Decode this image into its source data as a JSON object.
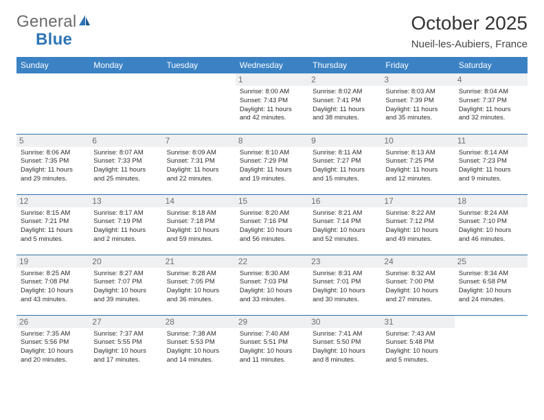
{
  "brand": {
    "part1": "General",
    "part2": "Blue"
  },
  "title": "October 2025",
  "location": "Nueil-les-Aubiers, France",
  "colors": {
    "header_bg": "#3b82c4",
    "header_text": "#ffffff",
    "daynum_bg": "#eef0f2",
    "rule": "#2e6da4",
    "brand_blue": "#2e74b5"
  },
  "weekdays": [
    "Sunday",
    "Monday",
    "Tuesday",
    "Wednesday",
    "Thursday",
    "Friday",
    "Saturday"
  ],
  "weeks": [
    [
      {
        "n": "",
        "sr": "",
        "ss": "",
        "dl": ""
      },
      {
        "n": "",
        "sr": "",
        "ss": "",
        "dl": ""
      },
      {
        "n": "",
        "sr": "",
        "ss": "",
        "dl": ""
      },
      {
        "n": "1",
        "sr": "Sunrise: 8:00 AM",
        "ss": "Sunset: 7:43 PM",
        "dl": "Daylight: 11 hours and 42 minutes."
      },
      {
        "n": "2",
        "sr": "Sunrise: 8:02 AM",
        "ss": "Sunset: 7:41 PM",
        "dl": "Daylight: 11 hours and 38 minutes."
      },
      {
        "n": "3",
        "sr": "Sunrise: 8:03 AM",
        "ss": "Sunset: 7:39 PM",
        "dl": "Daylight: 11 hours and 35 minutes."
      },
      {
        "n": "4",
        "sr": "Sunrise: 8:04 AM",
        "ss": "Sunset: 7:37 PM",
        "dl": "Daylight: 11 hours and 32 minutes."
      }
    ],
    [
      {
        "n": "5",
        "sr": "Sunrise: 8:06 AM",
        "ss": "Sunset: 7:35 PM",
        "dl": "Daylight: 11 hours and 29 minutes."
      },
      {
        "n": "6",
        "sr": "Sunrise: 8:07 AM",
        "ss": "Sunset: 7:33 PM",
        "dl": "Daylight: 11 hours and 25 minutes."
      },
      {
        "n": "7",
        "sr": "Sunrise: 8:09 AM",
        "ss": "Sunset: 7:31 PM",
        "dl": "Daylight: 11 hours and 22 minutes."
      },
      {
        "n": "8",
        "sr": "Sunrise: 8:10 AM",
        "ss": "Sunset: 7:29 PM",
        "dl": "Daylight: 11 hours and 19 minutes."
      },
      {
        "n": "9",
        "sr": "Sunrise: 8:11 AM",
        "ss": "Sunset: 7:27 PM",
        "dl": "Daylight: 11 hours and 15 minutes."
      },
      {
        "n": "10",
        "sr": "Sunrise: 8:13 AM",
        "ss": "Sunset: 7:25 PM",
        "dl": "Daylight: 11 hours and 12 minutes."
      },
      {
        "n": "11",
        "sr": "Sunrise: 8:14 AM",
        "ss": "Sunset: 7:23 PM",
        "dl": "Daylight: 11 hours and 9 minutes."
      }
    ],
    [
      {
        "n": "12",
        "sr": "Sunrise: 8:15 AM",
        "ss": "Sunset: 7:21 PM",
        "dl": "Daylight: 11 hours and 5 minutes."
      },
      {
        "n": "13",
        "sr": "Sunrise: 8:17 AM",
        "ss": "Sunset: 7:19 PM",
        "dl": "Daylight: 11 hours and 2 minutes."
      },
      {
        "n": "14",
        "sr": "Sunrise: 8:18 AM",
        "ss": "Sunset: 7:18 PM",
        "dl": "Daylight: 10 hours and 59 minutes."
      },
      {
        "n": "15",
        "sr": "Sunrise: 8:20 AM",
        "ss": "Sunset: 7:16 PM",
        "dl": "Daylight: 10 hours and 56 minutes."
      },
      {
        "n": "16",
        "sr": "Sunrise: 8:21 AM",
        "ss": "Sunset: 7:14 PM",
        "dl": "Daylight: 10 hours and 52 minutes."
      },
      {
        "n": "17",
        "sr": "Sunrise: 8:22 AM",
        "ss": "Sunset: 7:12 PM",
        "dl": "Daylight: 10 hours and 49 minutes."
      },
      {
        "n": "18",
        "sr": "Sunrise: 8:24 AM",
        "ss": "Sunset: 7:10 PM",
        "dl": "Daylight: 10 hours and 46 minutes."
      }
    ],
    [
      {
        "n": "19",
        "sr": "Sunrise: 8:25 AM",
        "ss": "Sunset: 7:08 PM",
        "dl": "Daylight: 10 hours and 43 minutes."
      },
      {
        "n": "20",
        "sr": "Sunrise: 8:27 AM",
        "ss": "Sunset: 7:07 PM",
        "dl": "Daylight: 10 hours and 39 minutes."
      },
      {
        "n": "21",
        "sr": "Sunrise: 8:28 AM",
        "ss": "Sunset: 7:05 PM",
        "dl": "Daylight: 10 hours and 36 minutes."
      },
      {
        "n": "22",
        "sr": "Sunrise: 8:30 AM",
        "ss": "Sunset: 7:03 PM",
        "dl": "Daylight: 10 hours and 33 minutes."
      },
      {
        "n": "23",
        "sr": "Sunrise: 8:31 AM",
        "ss": "Sunset: 7:01 PM",
        "dl": "Daylight: 10 hours and 30 minutes."
      },
      {
        "n": "24",
        "sr": "Sunrise: 8:32 AM",
        "ss": "Sunset: 7:00 PM",
        "dl": "Daylight: 10 hours and 27 minutes."
      },
      {
        "n": "25",
        "sr": "Sunrise: 8:34 AM",
        "ss": "Sunset: 6:58 PM",
        "dl": "Daylight: 10 hours and 24 minutes."
      }
    ],
    [
      {
        "n": "26",
        "sr": "Sunrise: 7:35 AM",
        "ss": "Sunset: 5:56 PM",
        "dl": "Daylight: 10 hours and 20 minutes."
      },
      {
        "n": "27",
        "sr": "Sunrise: 7:37 AM",
        "ss": "Sunset: 5:55 PM",
        "dl": "Daylight: 10 hours and 17 minutes."
      },
      {
        "n": "28",
        "sr": "Sunrise: 7:38 AM",
        "ss": "Sunset: 5:53 PM",
        "dl": "Daylight: 10 hours and 14 minutes."
      },
      {
        "n": "29",
        "sr": "Sunrise: 7:40 AM",
        "ss": "Sunset: 5:51 PM",
        "dl": "Daylight: 10 hours and 11 minutes."
      },
      {
        "n": "30",
        "sr": "Sunrise: 7:41 AM",
        "ss": "Sunset: 5:50 PM",
        "dl": "Daylight: 10 hours and 8 minutes."
      },
      {
        "n": "31",
        "sr": "Sunrise: 7:43 AM",
        "ss": "Sunset: 5:48 PM",
        "dl": "Daylight: 10 hours and 5 minutes."
      },
      {
        "n": "",
        "sr": "",
        "ss": "",
        "dl": ""
      }
    ]
  ]
}
